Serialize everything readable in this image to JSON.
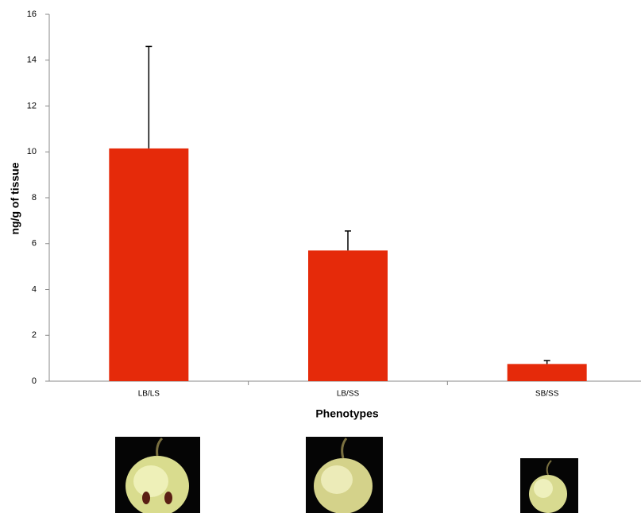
{
  "chart_data": {
    "type": "bar",
    "categories": [
      "LB/LS",
      "LB/SS",
      "SB/SS"
    ],
    "values": [
      10.15,
      5.7,
      0.75
    ],
    "errors": [
      4.45,
      0.85,
      0.15
    ],
    "color": "#e52a0a",
    "x_label": "Phenotypes",
    "y_label": "ng/g of tissue",
    "ylim": [
      0,
      16
    ],
    "yticks": [
      0,
      2,
      4,
      6,
      8,
      10,
      12,
      14,
      16
    ]
  }
}
